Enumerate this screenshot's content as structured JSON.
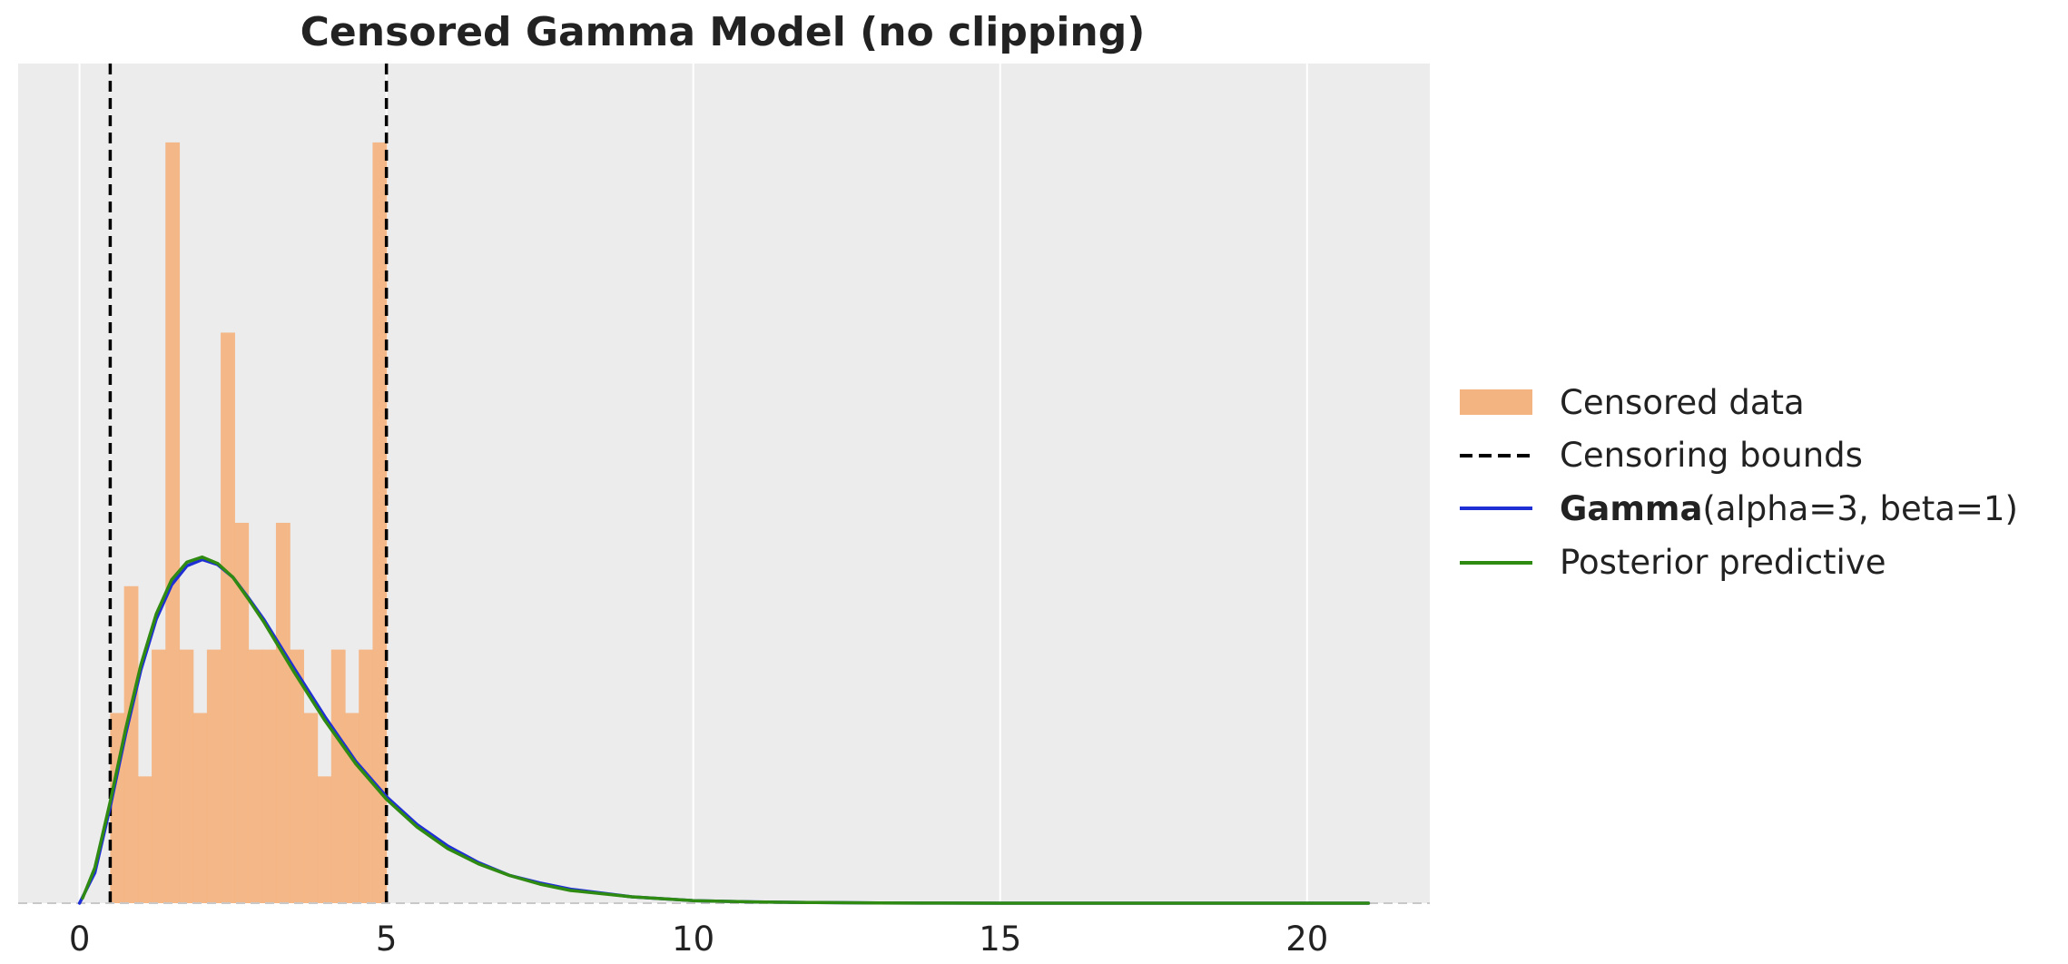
{
  "colors": {
    "plot_background": "#ececec",
    "grid": "#ffffff",
    "histogram": "#f4b482",
    "censoring_bounds": "#000000",
    "gamma_curve": "#1f2fd6",
    "posterior_curve": "#2f8a12",
    "baseline": "#c8c8c8",
    "text": "#222222"
  },
  "chart_data": {
    "type": "histogram",
    "title": "Censored Gamma Model (no clipping)",
    "xlabel": "",
    "ylabel": "",
    "xlim": [
      -1.0,
      22.0
    ],
    "ylim": [
      0,
      0.63
    ],
    "x_ticks": [
      0,
      5,
      10,
      15,
      20
    ],
    "x_tick_labels": [
      "0",
      "5",
      "10",
      "15",
      "20"
    ],
    "y_axis_visible": false,
    "grid": "vertical",
    "legend_position": "right",
    "histogram": {
      "name": "Censored data",
      "bin_edges": [
        0.5,
        0.725,
        0.95,
        1.175,
        1.4,
        1.625,
        1.85,
        2.075,
        2.3,
        2.525,
        2.75,
        2.975,
        3.2,
        3.425,
        3.65,
        3.875,
        4.1,
        4.325,
        4.55,
        4.775,
        5.0
      ],
      "values": [
        0.15,
        0.25,
        0.1,
        0.2,
        0.6,
        0.2,
        0.15,
        0.2,
        0.45,
        0.3,
        0.2,
        0.2,
        0.3,
        0.2,
        0.15,
        0.1,
        0.2,
        0.15,
        0.2,
        0.6
      ]
    },
    "censoring_bounds": {
      "name": "Censoring bounds",
      "values": [
        0.5,
        5.0
      ]
    },
    "series": [
      {
        "name": "Gamma(alpha=3, beta=1)",
        "name_bold": "Gamma",
        "name_rest": "(alpha=3, beta=1)",
        "x": [
          0,
          0.25,
          0.5,
          0.75,
          1.0,
          1.25,
          1.5,
          1.75,
          2.0,
          2.25,
          2.5,
          2.75,
          3.0,
          3.5,
          4.0,
          4.5,
          5.0,
          5.5,
          6.0,
          6.5,
          7.0,
          7.5,
          8.0,
          9.0,
          10.0,
          11.0,
          12.0,
          13.0,
          14.0,
          15.0,
          16.0,
          17.0,
          18.0,
          19.0,
          20.0,
          21.0
        ],
        "values": [
          0.0,
          0.024,
          0.076,
          0.133,
          0.184,
          0.224,
          0.251,
          0.266,
          0.271,
          0.267,
          0.257,
          0.241,
          0.224,
          0.185,
          0.147,
          0.112,
          0.084,
          0.062,
          0.045,
          0.032,
          0.022,
          0.016,
          0.011,
          0.005,
          0.002,
          0.001,
          0.0005,
          0.0002,
          0.0001,
          0.0,
          0.0,
          0.0,
          0.0,
          0.0,
          0.0,
          0.0
        ]
      },
      {
        "name": "Posterior predictive",
        "x": [
          0.05,
          0.25,
          0.5,
          0.75,
          1.0,
          1.25,
          1.5,
          1.75,
          2.0,
          2.25,
          2.5,
          2.75,
          3.0,
          3.5,
          4.0,
          4.5,
          5.0,
          5.5,
          6.0,
          6.5,
          7.0,
          7.5,
          8.0,
          9.0,
          10.0,
          11.0,
          12.0,
          13.0,
          14.0,
          15.0,
          16.0,
          17.0,
          18.0,
          19.0,
          20.0,
          21.0
        ],
        "values": [
          0.004,
          0.028,
          0.08,
          0.137,
          0.188,
          0.228,
          0.255,
          0.269,
          0.273,
          0.268,
          0.257,
          0.24,
          0.222,
          0.182,
          0.144,
          0.11,
          0.082,
          0.06,
          0.043,
          0.031,
          0.022,
          0.015,
          0.01,
          0.005,
          0.002,
          0.001,
          0.0005,
          0.0002,
          0.0001,
          0.0,
          0.0,
          0.0,
          0.0,
          0.0,
          0.0,
          0.0
        ]
      }
    ]
  },
  "legend": {
    "items": [
      {
        "key": "histogram",
        "label": "Censored data"
      },
      {
        "key": "bounds",
        "label": "Censoring bounds"
      },
      {
        "key": "gamma",
        "label_bold": "Gamma",
        "label_rest": "(alpha=3, beta=1)"
      },
      {
        "key": "posterior",
        "label": "Posterior predictive"
      }
    ]
  }
}
